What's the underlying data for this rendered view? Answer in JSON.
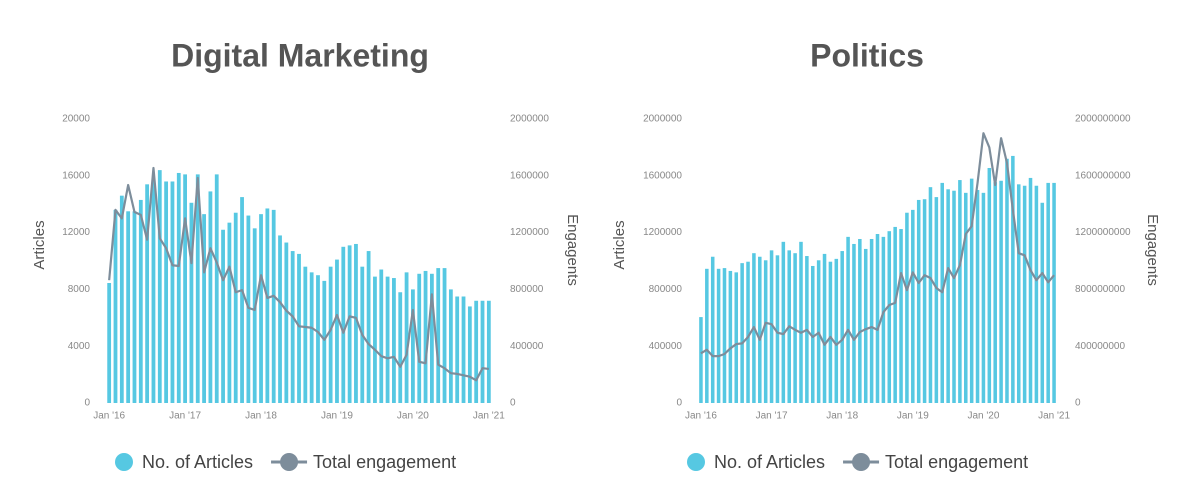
{
  "chart_data": [
    {
      "type": "bar",
      "title": "Digital Marketing",
      "ylabel": "Articles",
      "y2label": "Engagents",
      "categories": [
        "Jan '16",
        null,
        null,
        null,
        null,
        null,
        null,
        null,
        null,
        null,
        null,
        null,
        "Jan '17",
        null,
        null,
        null,
        null,
        null,
        null,
        null,
        null,
        null,
        null,
        null,
        "Jan '18",
        null,
        null,
        null,
        null,
        null,
        null,
        null,
        null,
        null,
        null,
        null,
        "Jan '19",
        null,
        null,
        null,
        null,
        null,
        null,
        null,
        null,
        null,
        null,
        null,
        "Jan '20",
        null,
        null,
        null,
        null,
        null,
        null,
        null,
        null,
        null,
        null,
        null,
        "Jan '21"
      ],
      "ylim": [
        0,
        20000
      ],
      "yticks": [
        0,
        4000,
        8000,
        12000,
        16000,
        20000
      ],
      "y2lim": [
        0,
        2000000
      ],
      "y2ticks": [
        0,
        400000,
        800000,
        1200000,
        1600000,
        2000000
      ],
      "legend": "bottom",
      "series": [
        {
          "name": "No. of Articles",
          "type": "bar",
          "color": "#56c8e2",
          "values": [
            8450,
            13600,
            14600,
            13500,
            13500,
            14300,
            15400,
            15700,
            16400,
            15600,
            15600,
            16200,
            16100,
            14100,
            16100,
            13300,
            14900,
            16100,
            12200,
            12700,
            13400,
            14500,
            13200,
            12300,
            13300,
            13700,
            13600,
            11800,
            11300,
            10700,
            10500,
            9600,
            9200,
            9000,
            8600,
            9600,
            10100,
            11000,
            11100,
            11200,
            9600,
            10700,
            8900,
            9400,
            8900,
            8800,
            7800,
            9200,
            8000,
            9100,
            9300,
            9100,
            9500,
            9500,
            8000,
            7500,
            7500,
            6800,
            7200,
            7200,
            7200
          ]
        },
        {
          "name": "Total engagement",
          "type": "line",
          "axis": "y2",
          "color": "#7d8d9b",
          "values": [
            865000,
            1360000,
            1300000,
            1535000,
            1345000,
            1325000,
            1150000,
            1655000,
            1160000,
            1090000,
            970000,
            965000,
            1300000,
            985000,
            1585000,
            920000,
            1090000,
            990000,
            865000,
            960000,
            780000,
            795000,
            670000,
            655000,
            900000,
            740000,
            755000,
            710000,
            650000,
            610000,
            540000,
            535000,
            530000,
            500000,
            445000,
            515000,
            620000,
            495000,
            610000,
            600000,
            480000,
            415000,
            375000,
            330000,
            315000,
            325000,
            255000,
            340000,
            655000,
            290000,
            280000,
            765000,
            270000,
            245000,
            210000,
            205000,
            195000,
            185000,
            160000,
            245000,
            240000
          ]
        }
      ]
    },
    {
      "type": "bar",
      "title": "Politics",
      "ylabel": "Articles",
      "y2label": "Engagents",
      "categories": [
        "Jan '16",
        null,
        null,
        null,
        null,
        null,
        null,
        null,
        null,
        null,
        null,
        null,
        "Jan '17",
        null,
        null,
        null,
        null,
        null,
        null,
        null,
        null,
        null,
        null,
        null,
        "Jan '18",
        null,
        null,
        null,
        null,
        null,
        null,
        null,
        null,
        null,
        null,
        null,
        "Jan '19",
        null,
        null,
        null,
        null,
        null,
        null,
        null,
        null,
        null,
        null,
        null,
        "Jan '20",
        null,
        null,
        null,
        null,
        null,
        null,
        null,
        null,
        null,
        null,
        null,
        "Jan '21"
      ],
      "ylim": [
        0,
        2000000
      ],
      "yticks": [
        0,
        400000,
        800000,
        1200000,
        1600000,
        2000000
      ],
      "y2lim": [
        0,
        2000000000
      ],
      "y2ticks": [
        0,
        400000000,
        800000000,
        1200000000,
        1600000000,
        2000000000
      ],
      "legend": "bottom",
      "series": [
        {
          "name": "No. of Articles",
          "type": "bar",
          "color": "#56c8e2",
          "values": [
            605000,
            945000,
            1030000,
            945000,
            950000,
            930000,
            920000,
            985000,
            995000,
            1055000,
            1030000,
            1005000,
            1075000,
            1040000,
            1135000,
            1075000,
            1055000,
            1135000,
            1035000,
            965000,
            1005000,
            1050000,
            995000,
            1015000,
            1070000,
            1170000,
            1120000,
            1155000,
            1085000,
            1155000,
            1190000,
            1170000,
            1210000,
            1240000,
            1225000,
            1340000,
            1360000,
            1430000,
            1435000,
            1520000,
            1450000,
            1550000,
            1505000,
            1495000,
            1570000,
            1480000,
            1580000,
            1500000,
            1480000,
            1655000,
            1555000,
            1565000,
            1720000,
            1740000,
            1540000,
            1530000,
            1585000,
            1530000,
            1410000,
            1550000,
            1550000
          ]
        },
        {
          "name": "Total engagement",
          "type": "line",
          "axis": "y2",
          "color": "#7d8d9b",
          "values": [
            350000000,
            375000000,
            330000000,
            330000000,
            345000000,
            385000000,
            415000000,
            420000000,
            465000000,
            535000000,
            445000000,
            565000000,
            555000000,
            495000000,
            485000000,
            540000000,
            515000000,
            495000000,
            515000000,
            465000000,
            495000000,
            410000000,
            465000000,
            410000000,
            445000000,
            515000000,
            445000000,
            500000000,
            520000000,
            535000000,
            515000000,
            640000000,
            690000000,
            705000000,
            915000000,
            795000000,
            920000000,
            845000000,
            900000000,
            880000000,
            810000000,
            780000000,
            950000000,
            880000000,
            970000000,
            1190000000,
            1245000000,
            1550000000,
            1900000000,
            1800000000,
            1535000000,
            1865000000,
            1690000000,
            1360000000,
            1055000000,
            1040000000,
            935000000,
            865000000,
            915000000,
            850000000,
            900000000
          ]
        }
      ]
    }
  ]
}
